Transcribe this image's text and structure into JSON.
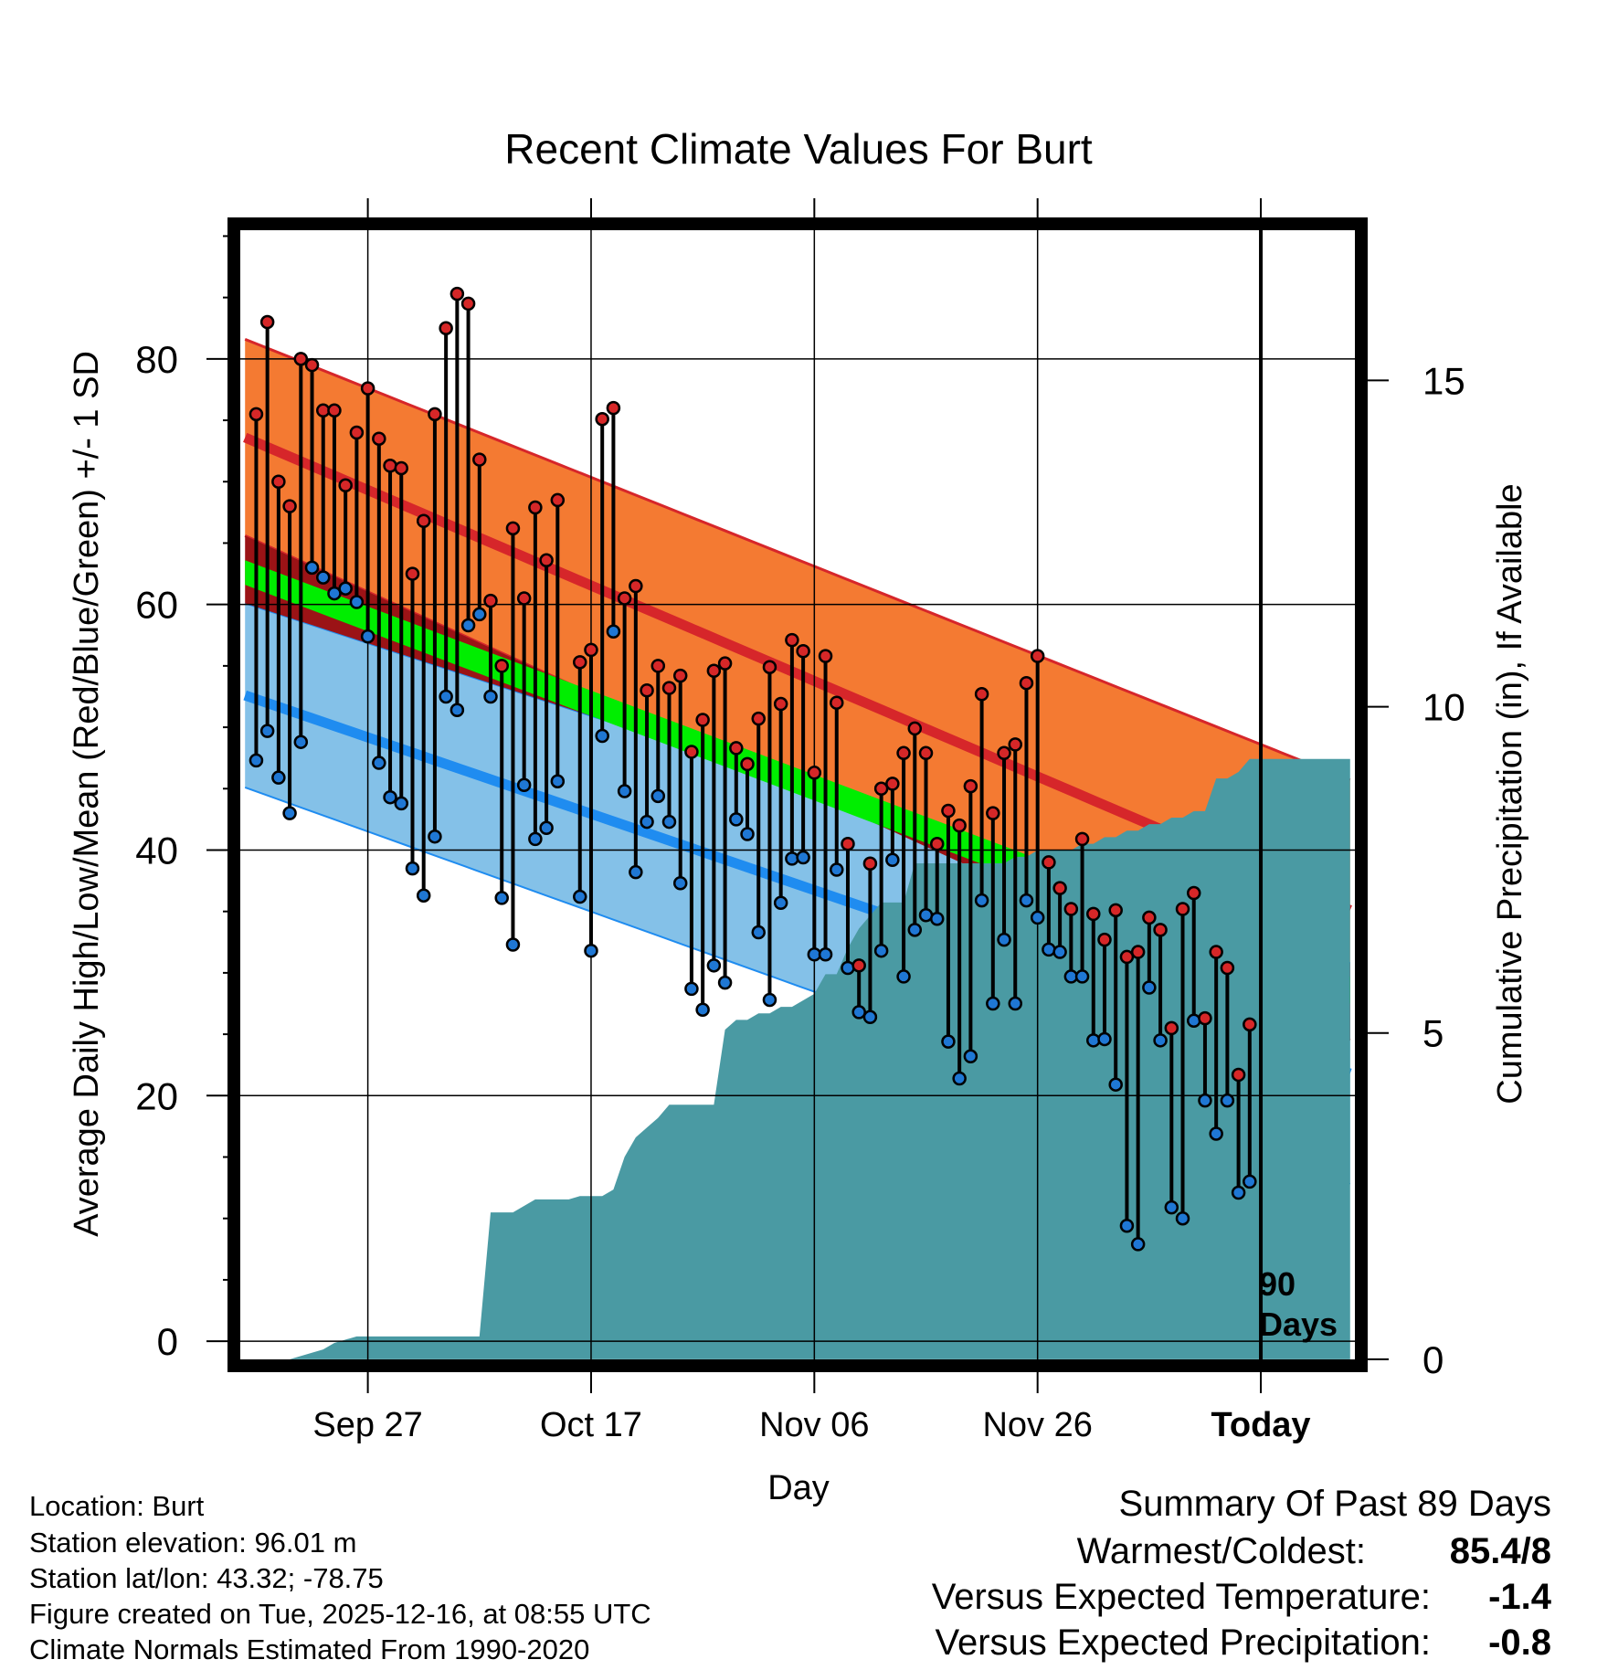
{
  "chart_data": {
    "type": "line",
    "title": "Recent Climate Values For Burt",
    "xlabel": "Day",
    "ylabel": "Average Daily High/Low/Mean (Red/Blue/Green) +/- 1 SD",
    "y2label": "Cumulative Precipitation (in), If Available",
    "xlim": [
      -2,
      99
    ],
    "ylim": [
      -2,
      91
    ],
    "y2lim": [
      -0.1,
      17.4
    ],
    "x_ticks": [
      {
        "x": 10,
        "label": "Sep 27"
      },
      {
        "x": 30,
        "label": "Oct 17"
      },
      {
        "x": 50,
        "label": "Nov 06"
      },
      {
        "x": 70,
        "label": "Nov 26"
      },
      {
        "x": 90,
        "label": "Today"
      }
    ],
    "y_ticks": [
      0,
      20,
      40,
      60,
      80
    ],
    "y2_ticks": [
      0,
      5,
      10,
      15
    ],
    "today_x": 90,
    "today_note": [
      "90",
      "Days"
    ],
    "normals_x": [
      -1,
      98
    ],
    "normal_high": {
      "mean": [
        73.6,
        35.1
      ],
      "sd": [
        8.0,
        10.6
      ]
    },
    "normal_low": {
      "mean": [
        52.6,
        21.8
      ],
      "sd": [
        7.5,
        9.0
      ]
    },
    "normal_mean": {
      "mean": [
        62.6,
        28.6
      ],
      "sd": [
        1.0,
        1.1
      ]
    },
    "colors": {
      "high_band": "#f47a32",
      "high_line": "#d6262a",
      "low_band": "#84c1e8",
      "low_line": "#1f8cf0",
      "mean_band": "#00ee00",
      "overlap": "#9b1316",
      "precip": "#4a9aa3",
      "high_marker": "#d62728",
      "low_marker": "#1f77d4"
    },
    "daily_start_x": 0,
    "daily_highs": [
      75.5,
      83.0,
      70.0,
      68.0,
      80.0,
      79.5,
      75.8,
      75.8,
      69.7,
      74.0,
      77.6,
      73.5,
      71.3,
      71.1,
      62.5,
      66.8,
      75.5,
      82.5,
      85.3,
      84.5,
      71.8,
      60.3,
      55.0,
      66.2,
      60.5,
      67.9,
      63.6,
      68.5,
      null,
      55.3,
      56.3,
      75.1,
      76.0,
      60.5,
      61.5,
      53.0,
      55.0,
      53.2,
      54.2,
      48.0,
      50.6,
      54.6,
      55.2,
      48.3,
      47.0,
      50.7,
      54.9,
      51.9,
      57.1,
      56.2,
      46.3,
      55.8,
      52.0,
      40.5,
      30.6,
      38.9,
      45.0,
      45.4,
      47.9,
      49.9,
      47.9,
      40.5,
      43.2,
      42.0,
      45.2,
      52.7,
      43.0,
      47.9,
      48.6,
      53.6,
      55.8,
      39.0,
      36.9,
      35.2,
      40.9,
      34.8,
      32.7,
      35.1,
      31.3,
      31.7,
      34.5,
      33.5,
      25.5,
      35.2,
      36.5,
      26.3,
      31.7,
      30.4,
      21.7,
      25.8
    ],
    "daily_lows": [
      47.3,
      49.7,
      45.9,
      43.0,
      48.8,
      63.0,
      62.2,
      60.9,
      61.3,
      60.2,
      57.4,
      47.1,
      44.3,
      43.8,
      38.5,
      36.3,
      41.1,
      52.5,
      51.4,
      58.3,
      59.2,
      52.5,
      36.1,
      32.3,
      45.3,
      40.9,
      41.8,
      45.6,
      null,
      36.2,
      31.8,
      49.3,
      57.8,
      44.8,
      38.2,
      42.3,
      44.4,
      42.3,
      37.3,
      28.7,
      27.0,
      30.6,
      29.2,
      42.5,
      41.3,
      33.3,
      27.8,
      35.7,
      39.3,
      39.4,
      31.5,
      31.5,
      38.4,
      30.4,
      26.8,
      26.4,
      31.8,
      39.2,
      29.7,
      33.5,
      34.7,
      34.4,
      24.4,
      21.4,
      23.2,
      35.9,
      27.5,
      32.7,
      27.5,
      35.9,
      34.5,
      31.9,
      31.7,
      29.7,
      29.7,
      24.5,
      24.6,
      20.9,
      9.4,
      7.9,
      28.8,
      24.5,
      10.9,
      10.0,
      26.1,
      19.6,
      16.9,
      19.6,
      12.1,
      13.0
    ],
    "cumulative_precip": {
      "x": [
        -1,
        3,
        6,
        7,
        9,
        10,
        11,
        12,
        13,
        14,
        15,
        16,
        17,
        18,
        19,
        20,
        21,
        22,
        23,
        24,
        25,
        26,
        27,
        28,
        29,
        30,
        31,
        32,
        33,
        34,
        35,
        36,
        37,
        38,
        39,
        40,
        41,
        42,
        43,
        44,
        45,
        46,
        47,
        48,
        49,
        50,
        51,
        52,
        53,
        54,
        55,
        56,
        57,
        58,
        59,
        60,
        61,
        62,
        63,
        64,
        65,
        66,
        67,
        68,
        69,
        70,
        71,
        72,
        73,
        74,
        75,
        76,
        77,
        78,
        79,
        80,
        81,
        82,
        83,
        84,
        85,
        86,
        87,
        88,
        89,
        90,
        91,
        98
      ],
      "y": [
        0,
        0,
        0.15,
        0.25,
        0.35,
        0.35,
        0.35,
        0.35,
        0.35,
        0.35,
        0.35,
        0.35,
        0.35,
        0.35,
        0.35,
        0.35,
        2.25,
        2.25,
        2.25,
        2.35,
        2.45,
        2.45,
        2.45,
        2.45,
        2.5,
        2.5,
        2.5,
        2.6,
        3.1,
        3.4,
        3.55,
        3.7,
        3.9,
        3.9,
        3.9,
        3.9,
        3.9,
        5.05,
        5.2,
        5.2,
        5.3,
        5.3,
        5.4,
        5.4,
        5.5,
        5.6,
        5.9,
        5.9,
        6.3,
        6.6,
        6.8,
        7.0,
        7.0,
        7.0,
        7.6,
        7.6,
        7.6,
        7.6,
        7.6,
        7.6,
        7.6,
        7.6,
        7.6,
        7.7,
        7.7,
        7.8,
        7.8,
        7.8,
        7.8,
        7.9,
        7.9,
        8.0,
        8.0,
        8.1,
        8.1,
        8.2,
        8.2,
        8.3,
        8.3,
        8.4,
        8.4,
        8.9,
        8.9,
        9.0,
        9.2,
        9.2,
        9.2,
        9.2
      ]
    },
    "legend": "none"
  },
  "footer_left": [
    "Location: Burt",
    "Station elevation: 96.01 m",
    "Station lat/lon: 43.32; -78.75",
    "Figure created on Tue, 2025-12-16, at 08:55 UTC",
    "Climate Normals Estimated From 1990-2020"
  ],
  "summary": {
    "heading": "Summary Of Past 89 Days",
    "warm_cold_label": "Warmest/Coldest:",
    "warm_cold_value": "85.4/8",
    "temp_label": "Versus Expected Temperature:",
    "temp_value": "-1.4",
    "temp_color": "#1f8cf0",
    "precip_label": "Versus Expected Precipitation:",
    "precip_value": "-0.8",
    "precip_color": "#a0522d"
  }
}
